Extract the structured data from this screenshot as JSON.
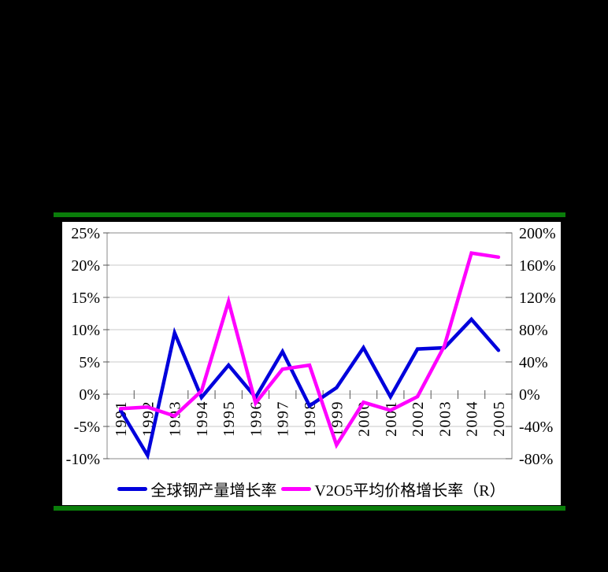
{
  "page": {
    "background": "#000000",
    "panel_background": "#ffffff",
    "divider_color": "#0a7d0a"
  },
  "chart_data": {
    "type": "line",
    "title": "",
    "categories": [
      "1991",
      "1992",
      "1993",
      "1994",
      "1995",
      "1996",
      "1997",
      "1998",
      "1999",
      "2000",
      "2001",
      "2002",
      "2003",
      "2004",
      "2005"
    ],
    "series": [
      {
        "name": "全球钢产量增长率",
        "axis": "left",
        "color": "#0000dc",
        "values": [
          -2.5,
          -9.5,
          9.5,
          -0.5,
          4.5,
          -0.5,
          6.6,
          -1.8,
          1.0,
          7.2,
          -0.4,
          7.0,
          7.2,
          11.6,
          6.8
        ]
      },
      {
        "name": "V2O5平均价格增长率（R）",
        "axis": "right",
        "color": "#ff00ff",
        "values": [
          -18,
          -16,
          -27,
          4,
          115,
          -11,
          31,
          36,
          -63,
          -10,
          -20,
          -3,
          60,
          175,
          170
        ]
      }
    ],
    "left_axis": {
      "min": -10,
      "max": 25,
      "tick_values": [
        25,
        20,
        15,
        10,
        5,
        0,
        -5,
        -10
      ],
      "tick_labels": [
        "25%",
        "20%",
        "15%",
        "10%",
        "5%",
        "0%",
        "-5%",
        "-10%"
      ]
    },
    "right_axis": {
      "min": -80,
      "max": 200,
      "tick_values": [
        200,
        160,
        120,
        80,
        40,
        0,
        -40,
        -80
      ],
      "tick_labels": [
        "200%",
        "160%",
        "120%",
        "80%",
        "40%",
        "0%",
        "-40%",
        "-80%"
      ]
    },
    "grid": true,
    "legend_position": "bottom",
    "styles": {
      "gridline_color": "#c8c8c8",
      "frame_color": "#8a8a8a",
      "tick_color": "#555555",
      "label_color": "#000000"
    }
  }
}
